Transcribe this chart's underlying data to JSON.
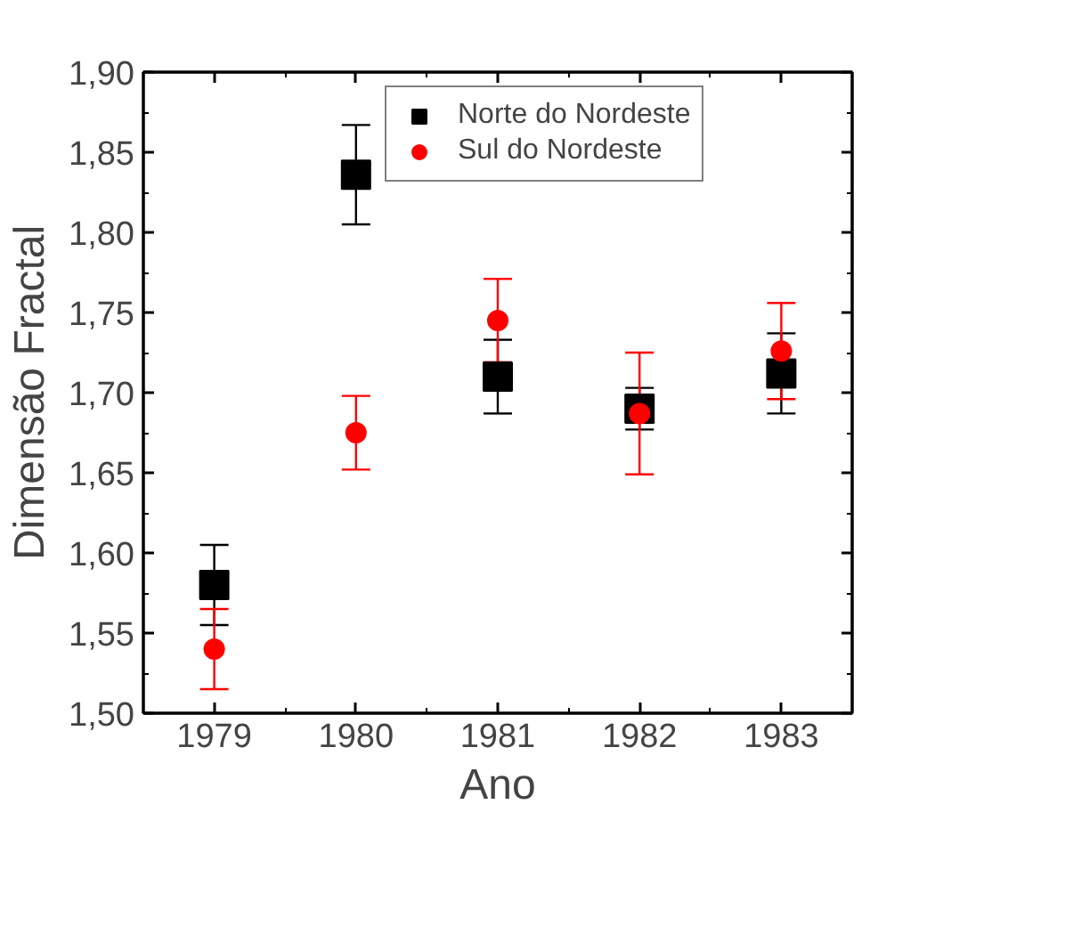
{
  "chart_data": {
    "type": "scatter",
    "xlabel": "Ano",
    "ylabel": "Dimensão Fractal",
    "x": [
      1979,
      1980,
      1981,
      1982,
      1983
    ],
    "xlim": [
      1978.5,
      1983.5
    ],
    "xticks": [
      1979,
      1980,
      1981,
      1982,
      1983
    ],
    "ylim": [
      1.5,
      1.9
    ],
    "yticks": [
      {
        "value": 1.5,
        "label": "1,50"
      },
      {
        "value": 1.55,
        "label": "1,55"
      },
      {
        "value": 1.6,
        "label": "1,60"
      },
      {
        "value": 1.65,
        "label": "1,65"
      },
      {
        "value": 1.7,
        "label": "1,70"
      },
      {
        "value": 1.75,
        "label": "1,75"
      },
      {
        "value": 1.8,
        "label": "1,80"
      },
      {
        "value": 1.85,
        "label": "1,85"
      },
      {
        "value": 1.9,
        "label": "1,90"
      }
    ],
    "grid": false,
    "legend": "top",
    "series": [
      {
        "name": "Norte do Nordeste",
        "color": "#000000",
        "marker": "square",
        "values": [
          1.58,
          1.836,
          1.71,
          1.69,
          1.712
        ],
        "errors": [
          0.025,
          0.031,
          0.023,
          0.013,
          0.025
        ]
      },
      {
        "name": "Sul do Nordeste",
        "color": "#ff0000",
        "marker": "circle",
        "values": [
          1.54,
          1.675,
          1.745,
          1.687,
          1.726
        ],
        "errors": [
          0.025,
          0.023,
          0.026,
          0.038,
          0.03
        ]
      }
    ]
  }
}
